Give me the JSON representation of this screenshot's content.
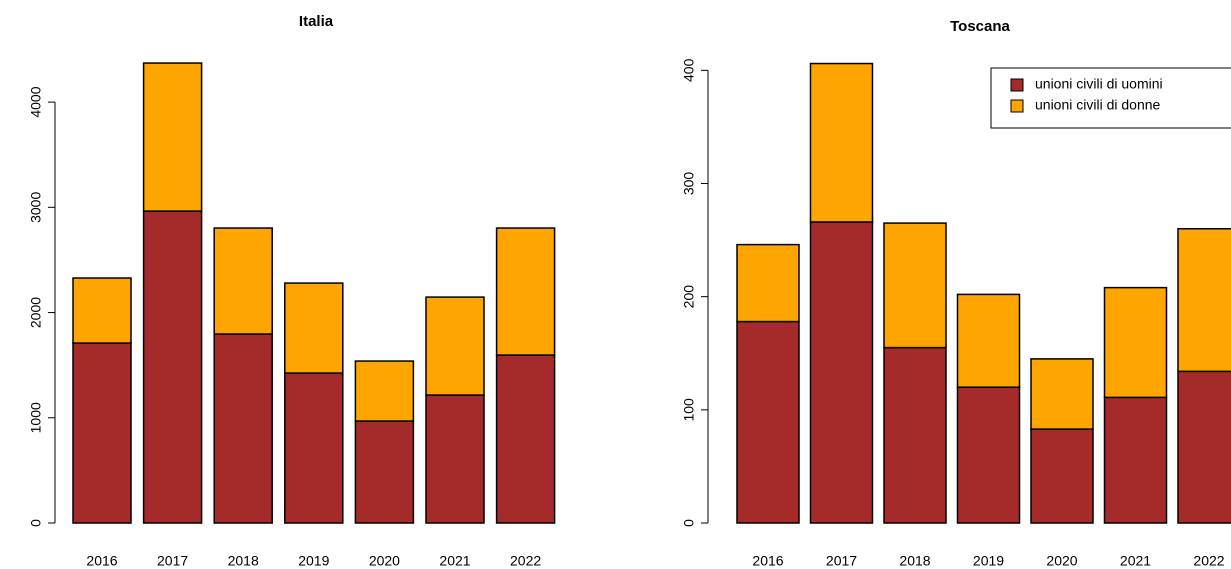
{
  "chart_data": [
    {
      "type": "stacked-bar",
      "title": "Italia",
      "categories": [
        "2016",
        "2017",
        "2018",
        "2019",
        "2020",
        "2021",
        "2022"
      ],
      "series": [
        {
          "color": "#a52a2a",
          "values": [
            1710,
            2964,
            1796,
            1425,
            969,
            1216,
            1596
          ]
        },
        {
          "color": "#ffa500",
          "values": [
            618,
            1407,
            1007,
            855,
            570,
            931,
            1207
          ]
        }
      ],
      "ylim": [
        0,
        4400
      ],
      "yticks": [
        0,
        1000,
        2000,
        3000,
        4000
      ]
    },
    {
      "type": "stacked-bar",
      "title": "Toscana",
      "categories": [
        "2016",
        "2017",
        "2018",
        "2019",
        "2020",
        "2021",
        "2022"
      ],
      "series": [
        {
          "name": "unioni civili di uomini",
          "color": "#a52a2a",
          "values": [
            178,
            266,
            155,
            120,
            83,
            111,
            134
          ]
        },
        {
          "name": "unioni civili di donne",
          "color": "#ffa500",
          "values": [
            68,
            140,
            110,
            82,
            62,
            97,
            126
          ]
        }
      ],
      "ylim": [
        0,
        410
      ],
      "yticks": [
        0,
        100,
        200,
        300,
        400
      ],
      "legend": "topright"
    }
  ]
}
